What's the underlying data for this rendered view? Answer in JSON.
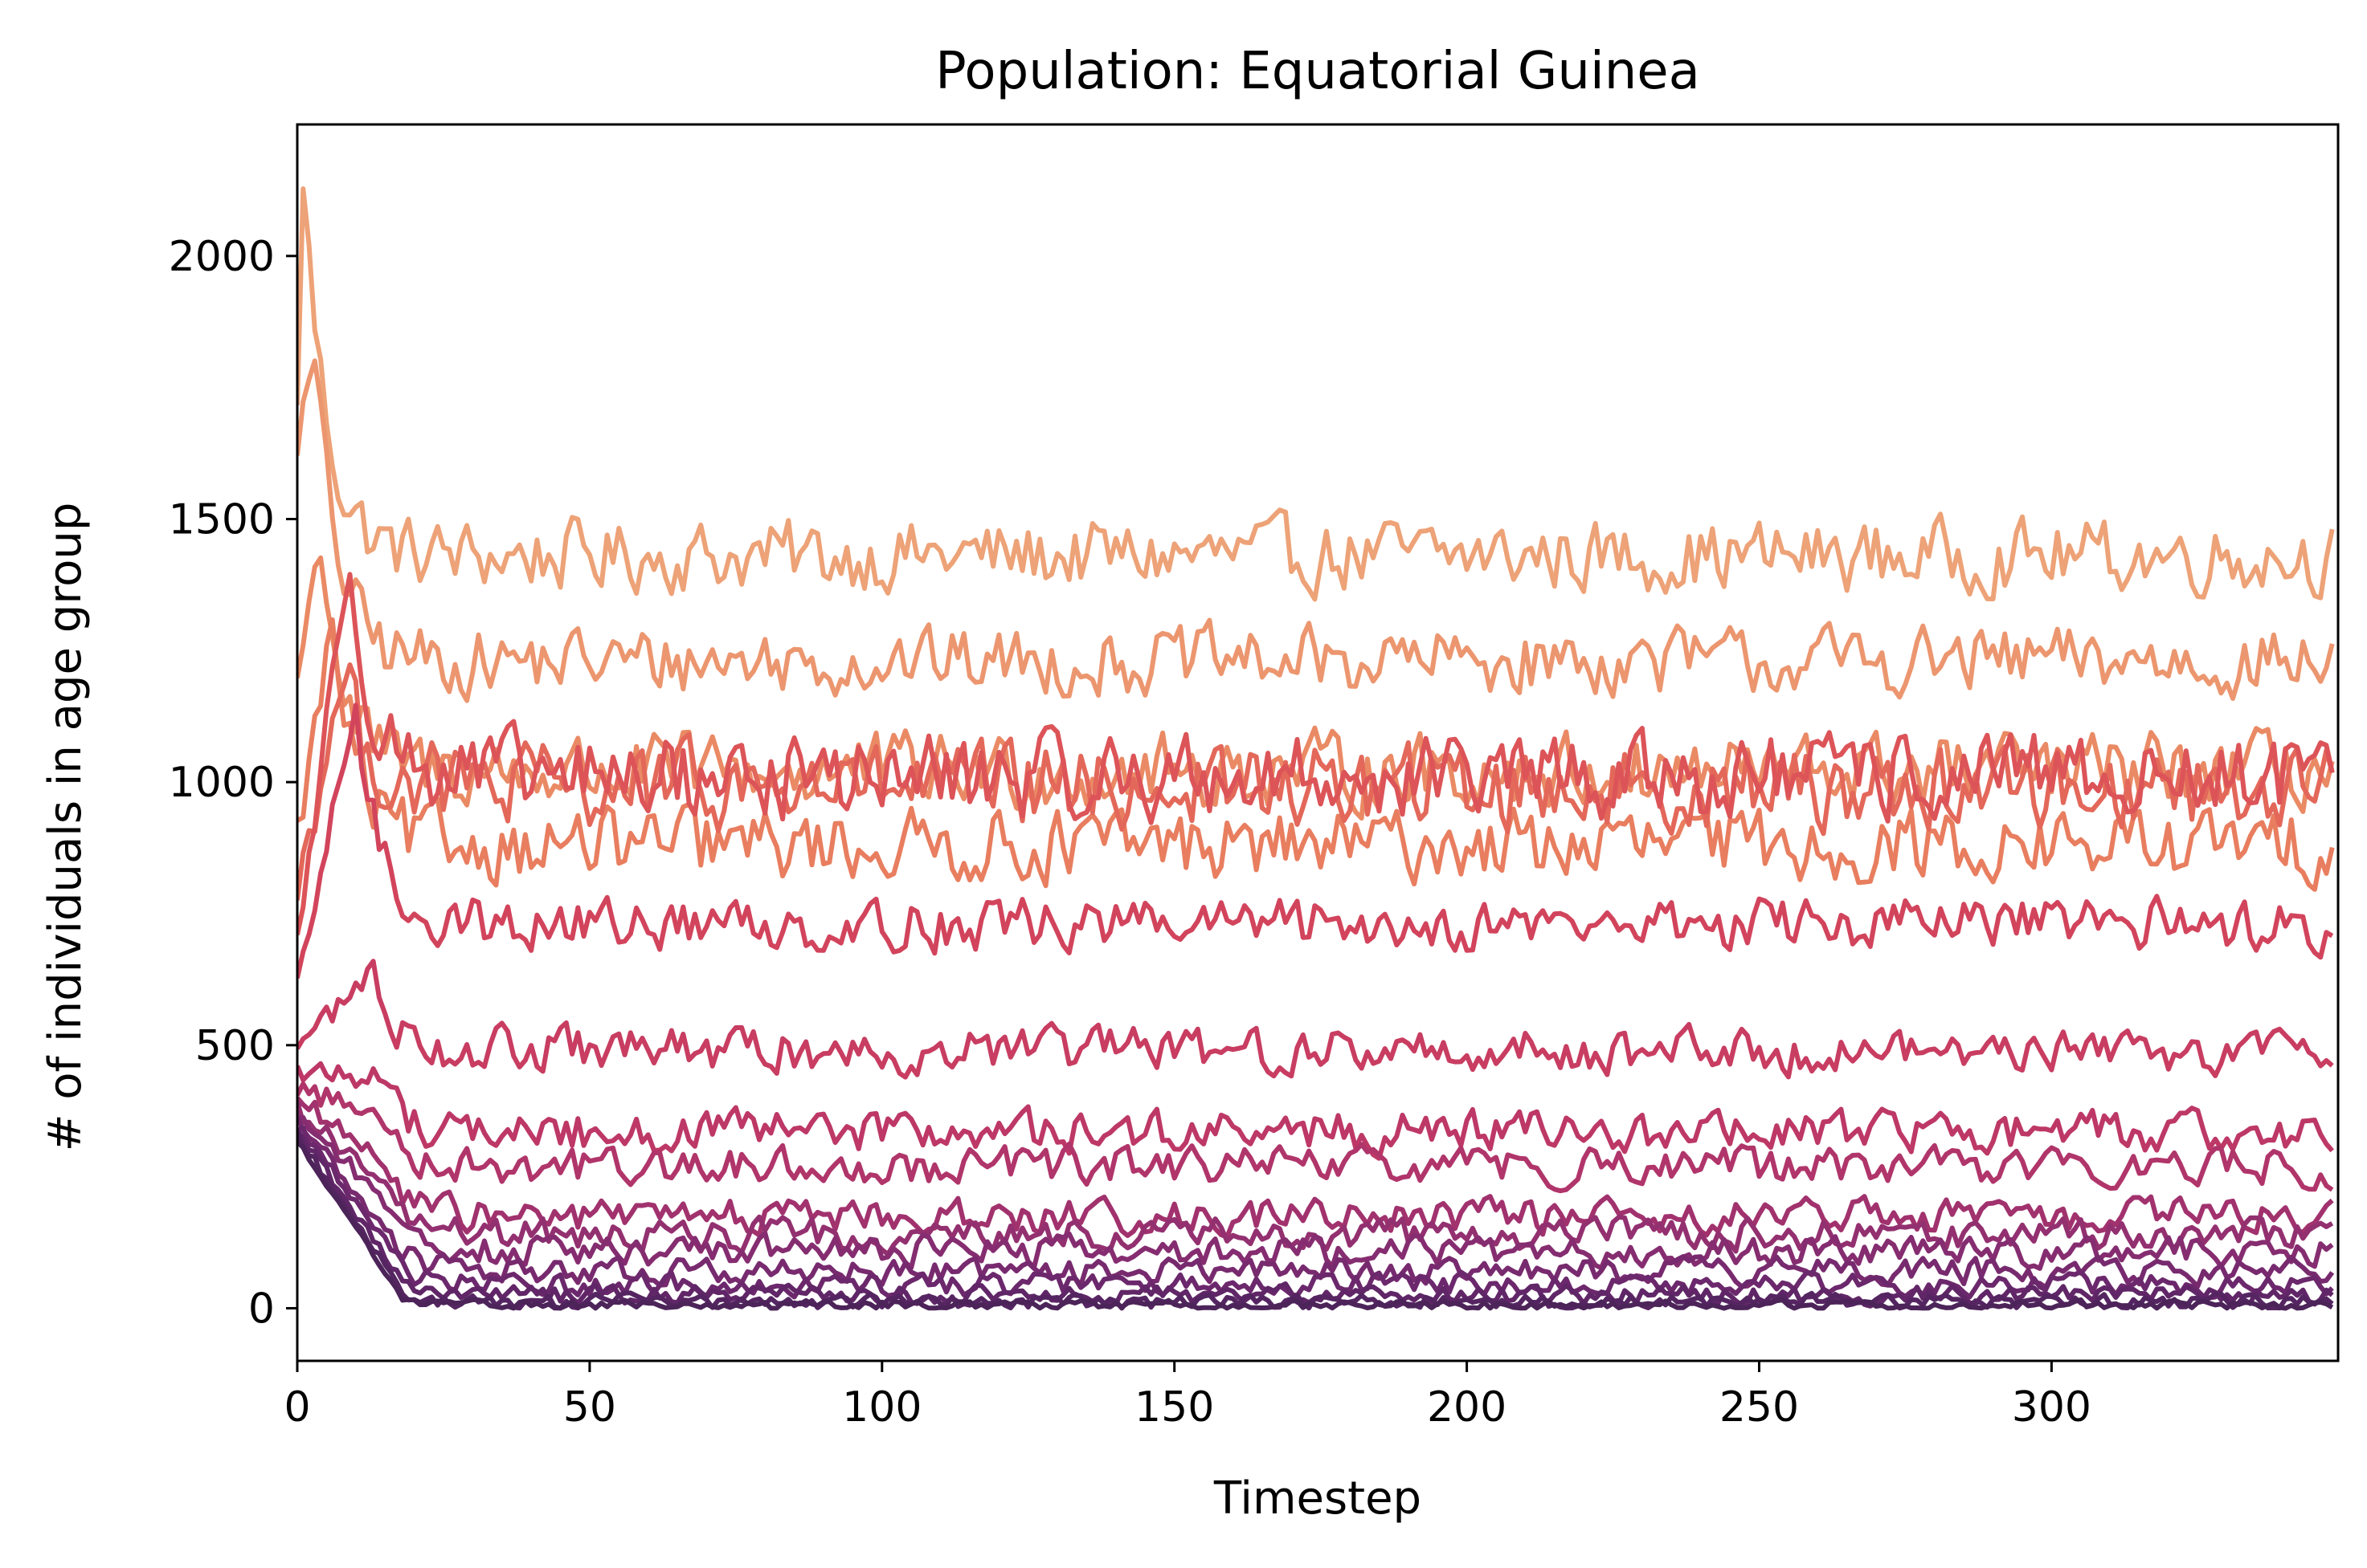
{
  "chart_data": {
    "type": "line",
    "title": "Population: Equatorial Guinea",
    "xlabel": "Timestep",
    "ylabel": "# of individuals in age group",
    "xlim": [
      0,
      349
    ],
    "ylim": [
      -100,
      2250
    ],
    "x_ticks": [
      0,
      50,
      100,
      150,
      200,
      250,
      300
    ],
    "y_ticks": [
      0,
      500,
      1000,
      1500,
      2000
    ],
    "grid": false,
    "legend": "none",
    "n_timesteps": 349,
    "colormap": "flare (dark purple to light orange)",
    "series": [
      {
        "start": 1700,
        "peak": 2150,
        "peak_t": 1,
        "settle": 1430,
        "noise": 38,
        "color": "#eda277"
      },
      {
        "start": 1650,
        "peak": 1800,
        "peak_t": 3,
        "settle": 1230,
        "noise": 36,
        "color": "#ec966f"
      },
      {
        "start": 1200,
        "peak": 1460,
        "peak_t": 4,
        "settle": 1020,
        "noise": 40,
        "color": "#ea8a65"
      },
      {
        "start": 900,
        "peak": 1300,
        "peak_t": 6,
        "settle": 880,
        "noise": 38,
        "color": "#e87e5f"
      },
      {
        "start": 800,
        "peak": 1200,
        "peak_t": 8,
        "settle": 990,
        "noise": 45,
        "color": "#e3685a"
      },
      {
        "start": 700,
        "peak": 1430,
        "peak_t": 9,
        "settle": 1010,
        "noise": 45,
        "color": "#dc5458"
      },
      {
        "start": 600,
        "peak": 1150,
        "peak_t": 10,
        "settle": 730,
        "noise": 28,
        "color": "#d2445c"
      },
      {
        "start": 500,
        "peak": 640,
        "peak_t": 13,
        "settle": 490,
        "noise": 24,
        "color": "#c83d61"
      },
      {
        "start": 450,
        "peak": 440,
        "peak_t": 14,
        "settle": 335,
        "noise": 22,
        "color": "#bd3866"
      },
      {
        "start": 420,
        "peak": 360,
        "peak_t": 15,
        "settle": 270,
        "noise": 20,
        "color": "#b0356a"
      },
      {
        "start": 400,
        "peak": 260,
        "peak_t": 16,
        "settle": 175,
        "noise": 18,
        "color": "#a1326e"
      },
      {
        "start": 380,
        "peak": 220,
        "peak_t": 16,
        "settle": 140,
        "noise": 17,
        "color": "#933070"
      },
      {
        "start": 370,
        "peak": 180,
        "peak_t": 17,
        "settle": 110,
        "noise": 16,
        "color": "#852d70"
      },
      {
        "start": 360,
        "peak": 120,
        "peak_t": 17,
        "settle": 70,
        "noise": 14,
        "color": "#782a6f"
      },
      {
        "start": 350,
        "peak": 80,
        "peak_t": 18,
        "settle": 45,
        "noise": 12,
        "color": "#6c286c"
      },
      {
        "start": 340,
        "peak": 50,
        "peak_t": 18,
        "settle": 25,
        "noise": 10,
        "color": "#602667"
      },
      {
        "start": 330,
        "peak": 30,
        "peak_t": 18,
        "settle": 12,
        "noise": 8,
        "color": "#552562"
      },
      {
        "start": 320,
        "peak": 20,
        "peak_t": 18,
        "settle": 6,
        "noise": 5,
        "color": "#4c2459"
      }
    ]
  }
}
